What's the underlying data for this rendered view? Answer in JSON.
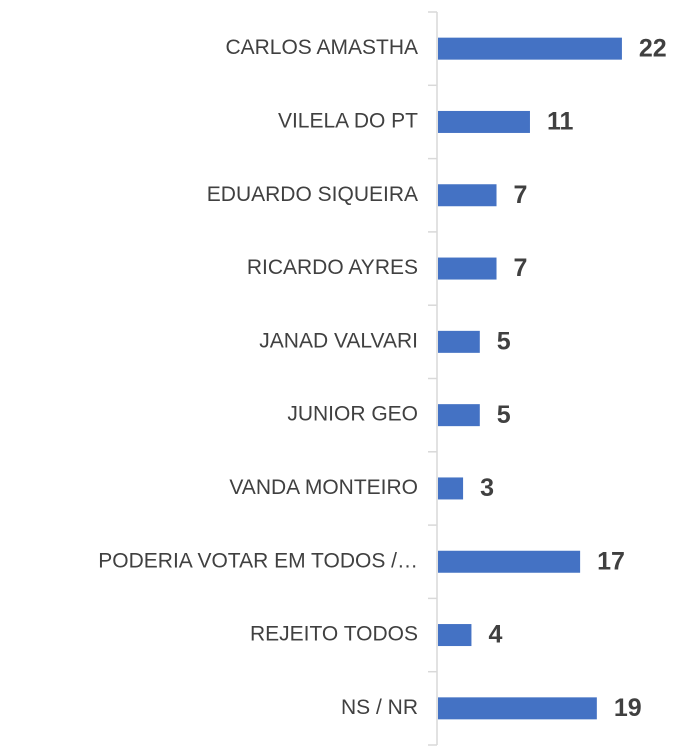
{
  "chart_data": {
    "type": "bar",
    "orientation": "horizontal",
    "color": "#4472c4",
    "categories": [
      "CARLOS AMASTHA",
      "VILELA DO PT",
      "EDUARDO SIQUEIRA",
      "RICARDO AYRES",
      "JANAD VALVARI",
      "JUNIOR GEO",
      "VANDA MONTEIRO",
      "PODERIA VOTAR EM TODOS /…",
      "REJEITO TODOS",
      "NS / NR"
    ],
    "values": [
      22,
      11,
      7,
      7,
      5,
      5,
      3,
      17,
      4,
      19
    ]
  }
}
